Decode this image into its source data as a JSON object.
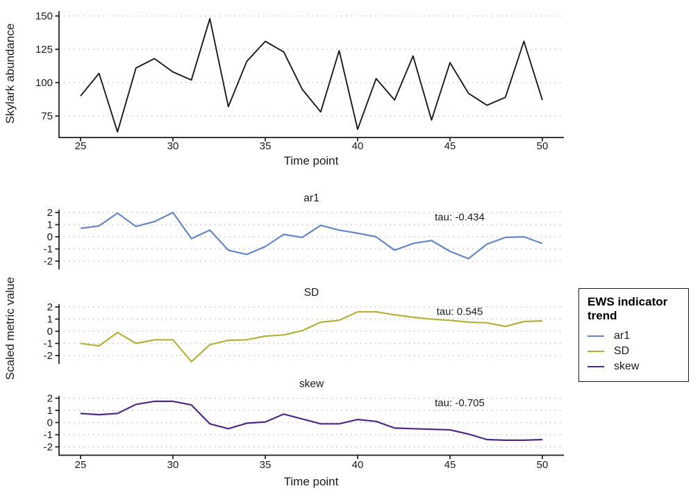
{
  "figure": {
    "background": "#ffffff",
    "grid_color": "#c4c4c4",
    "axis_color": "#1a1a1a"
  },
  "labels": {
    "indicator_ylabel": "Scaled metric value"
  },
  "legend": {
    "title": "EWS indicator trend",
    "items": [
      {
        "label": "ar1",
        "color": "#6585c6"
      },
      {
        "label": "SD",
        "color": "#b2b13a"
      },
      {
        "label": "skew",
        "color": "#4e2a84"
      }
    ]
  },
  "chart_data": [
    {
      "id": "skylark-abundance",
      "type": "line",
      "title": "",
      "ylabel": "Skylark abundance",
      "xlabel": "Time point",
      "x": [
        25,
        26,
        27,
        28,
        29,
        30,
        31,
        32,
        33,
        34,
        35,
        36,
        37,
        38,
        39,
        40,
        41,
        42,
        43,
        44,
        45,
        46,
        47,
        48,
        49,
        50
      ],
      "values": [
        90,
        107,
        63,
        111,
        118,
        108,
        102,
        148,
        82,
        116,
        131,
        123,
        95,
        78,
        124,
        65,
        103,
        87,
        120,
        72,
        115,
        92,
        83,
        89,
        131,
        87
      ],
      "color": "#1a1a1a",
      "yticks": [
        75,
        100,
        125,
        150
      ],
      "xticks": [
        25,
        30,
        35,
        40,
        45,
        50
      ],
      "ylim": [
        59,
        155
      ],
      "xlim": [
        23.8,
        51.2
      ],
      "grid": "dotted-horizontal",
      "legend": "none"
    },
    {
      "id": "ar1",
      "type": "line",
      "panel_title": "ar1",
      "annotation": "tau: -0.434",
      "x": [
        25,
        26,
        27,
        28,
        29,
        30,
        31,
        32,
        33,
        34,
        35,
        36,
        37,
        38,
        39,
        40,
        41,
        42,
        43,
        44,
        45,
        46,
        47,
        48,
        49,
        50
      ],
      "values": [
        0.7,
        0.9,
        1.95,
        0.85,
        1.25,
        2.0,
        -0.15,
        0.55,
        -1.1,
        -1.45,
        -0.8,
        0.2,
        -0.05,
        0.95,
        0.55,
        0.3,
        0.0,
        -1.1,
        -0.55,
        -0.3,
        -1.2,
        -1.8,
        -0.6,
        -0.05,
        0.0,
        -0.55
      ],
      "color": "#6585c6",
      "yticks": [
        -2,
        -1,
        0,
        1,
        2
      ],
      "ylim": [
        -2.7,
        2.2
      ],
      "grid": "dotted-horizontal"
    },
    {
      "id": "SD",
      "type": "line",
      "panel_title": "SD",
      "annotation": "tau: 0.545",
      "x": [
        25,
        26,
        27,
        28,
        29,
        30,
        31,
        32,
        33,
        34,
        35,
        36,
        37,
        38,
        39,
        40,
        41,
        42,
        43,
        44,
        45,
        46,
        47,
        48,
        49,
        50
      ],
      "values": [
        -1.0,
        -1.2,
        -0.1,
        -1.0,
        -0.7,
        -0.7,
        -2.5,
        -1.1,
        -0.75,
        -0.7,
        -0.4,
        -0.3,
        0.05,
        0.75,
        0.9,
        1.6,
        1.6,
        1.35,
        1.15,
        1.0,
        0.9,
        0.75,
        0.7,
        0.4,
        0.8,
        0.85
      ],
      "color": "#b2b13a",
      "yticks": [
        -2,
        -1,
        0,
        1,
        2
      ],
      "ylim": [
        -2.7,
        2.2
      ],
      "grid": "dotted-horizontal"
    },
    {
      "id": "skew",
      "type": "line",
      "panel_title": "skew",
      "annotation": "tau: -0.705",
      "xlabel": "Time point",
      "x": [
        25,
        26,
        27,
        28,
        29,
        30,
        31,
        32,
        33,
        34,
        35,
        36,
        37,
        38,
        39,
        40,
        41,
        42,
        43,
        44,
        45,
        46,
        47,
        48,
        49,
        50
      ],
      "values": [
        0.75,
        0.65,
        0.75,
        1.5,
        1.75,
        1.75,
        1.45,
        -0.1,
        -0.5,
        -0.05,
        0.05,
        0.7,
        0.3,
        -0.1,
        -0.1,
        0.25,
        0.1,
        -0.45,
        -0.5,
        -0.55,
        -0.6,
        -0.95,
        -1.4,
        -1.45,
        -1.45,
        -1.4
      ],
      "color": "#4e2a84",
      "yticks": [
        -2,
        -1,
        0,
        1,
        2
      ],
      "xticks": [
        25,
        30,
        35,
        40,
        45,
        50
      ],
      "ylim": [
        -2.7,
        2.2
      ],
      "grid": "dotted-horizontal"
    }
  ]
}
